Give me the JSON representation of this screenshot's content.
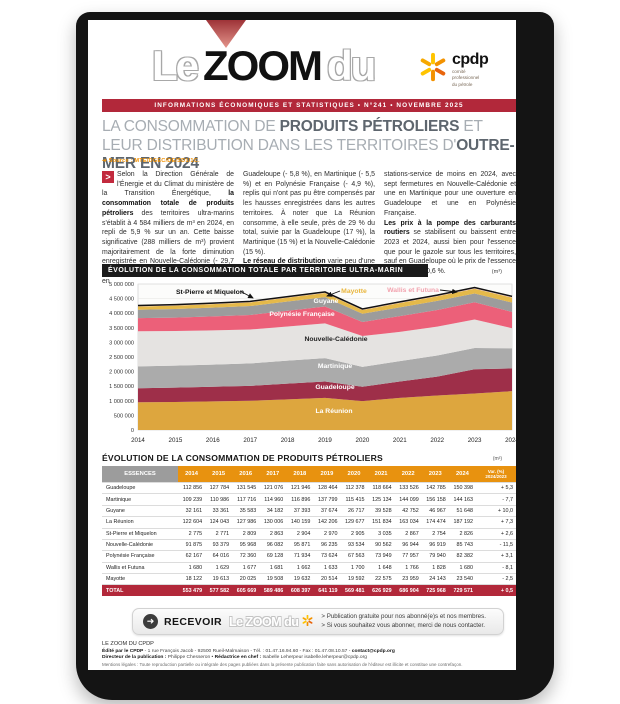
{
  "masthead": {
    "word1": "Le",
    "word2": "ZOOM",
    "word3": "du",
    "logo": {
      "name": "cpdp",
      "line1": "comité",
      "line2": "professionnel",
      "line3": "du pétrole"
    },
    "banner": "INFORMATIONS ÉCONOMIQUES ET STATISTIQUES • N°241 • NOVEMBRE 2025"
  },
  "title_segments": [
    {
      "t": "LA CONSOMMATION DE "
    },
    {
      "t": "PRODUITS PÉTROLIERS",
      "b": 1
    },
    {
      "t": " ET LEUR DISTRIBUTION DANS LES TERRITOIRES D'"
    },
    {
      "t": "OUTRE-MER EN 2024",
      "b": 1
    }
  ],
  "source": "➔ Source : MTE/DGEC/DE/SD1/1C.",
  "body": {
    "col1": [
      [
        {
          "t": "Selon la Direction Générale de l'Énergie et du Climat du ministère de la Transition Énergétique, "
        },
        {
          "t": "la consommation totale de produits pétroliers",
          "b": 1
        },
        {
          "t": " des territoires ultra-marins s'établit à 4 584 milliers de m³ en 2024, en repli de 5,9 % sur un an. Cette baisse significative (288 milliers de m³) provient majoritairement de la forte diminution enregistrée en Nouvelle-Calédonie (- 29,7 %) à laquelle viennent s'ajouter des reculs en"
        }
      ]
    ],
    "col2": [
      [
        {
          "t": "Guadeloupe (- 5,8 %), en Martinique (- 5,5 %) et en Polynésie Française (- 4,9 %), replis qui n'ont pas pu être compensés par les hausses enregistrées dans les autres territoires. À noter que La Réunion consomme, à elle seule, près de 29 % du total, suivie par la Guadeloupe (17 %), la Martinique (15 %) et la Nouvelle-Calédonie (15 %)."
        }
      ],
      [
        {
          "t": "Le réseau de distribution",
          "b": 1
        },
        {
          "t": " varie peu d'une année sur l'autre mais compte toutefois six"
        }
      ]
    ],
    "col3": [
      [
        {
          "t": "stations-service de moins en 2024, avec sept fermetures en Nouvelle-Calédonie et une en Martinique pour une ouverture en Guadeloupe et une en Polynésie Française."
        }
      ],
      [
        {
          "t": "Les prix à la pompe des carburants routiers",
          "b": 1
        },
        {
          "t": " se stabilisent ou baissent entre 2023 et 2024, aussi bien pour l'essence que pour le gazole sur tous les territoires, sauf en Guadeloupe où le prix de l'essence augmente de 0,6 %."
        }
      ]
    ]
  },
  "chart": {
    "header": "ÉVOLUTION DE LA CONSOMMATION TOTALE PAR TERRITOIRE ULTRA-MARIN",
    "unit": "(m³)"
  },
  "chart_data": {
    "type": "area",
    "stacked": true,
    "title": "ÉVOLUTION DE LA CONSOMMATION TOTALE PAR TERRITOIRE ULTRA-MARIN",
    "unit": "m³",
    "x": [
      2014,
      2015,
      2016,
      2017,
      2018,
      2019,
      2020,
      2021,
      2022,
      2023,
      2024
    ],
    "ylim": [
      0,
      5000000
    ],
    "ytick_step": 500000,
    "grid": true,
    "series": [
      {
        "name": "La Réunion",
        "color": "#DDA63E",
        "label_color": "#ffffff",
        "values": [
          950000,
          960000,
          980000,
          1000000,
          1050000,
          1100000,
          990000,
          1100000,
          1180000,
          1250000,
          1330000
        ]
      },
      {
        "name": "Guadeloupe",
        "color": "#9E2F49",
        "label_color": "#ffffff",
        "values": [
          480000,
          490000,
          500000,
          510000,
          540000,
          560000,
          490000,
          560000,
          650000,
          830000,
          780000
        ]
      },
      {
        "name": "Martinique",
        "color": "#ABABAB",
        "label_color": "#ffffff",
        "values": [
          750000,
          755000,
          760000,
          770000,
          785000,
          800000,
          680000,
          700000,
          720000,
          730000,
          690000
        ]
      },
      {
        "name": "Nouvelle-Calédonie",
        "color": "#E5E3E1",
        "label_color": "#222222",
        "values": [
          1200000,
          1185000,
          1170000,
          1160000,
          1170000,
          1190000,
          1060000,
          1000000,
          990000,
          975000,
          685000
        ]
      },
      {
        "name": "Polynésie Française",
        "color": "#EC6079",
        "label_color": "#ffffff",
        "values": [
          450000,
          460000,
          480000,
          500000,
          540000,
          580000,
          480000,
          540000,
          570000,
          590000,
          560000
        ]
      },
      {
        "name": "Guyane",
        "color": "#9C9C9C",
        "label_color": "#ffffff",
        "values": [
          290000,
          295000,
          300000,
          305000,
          315000,
          320000,
          280000,
          300000,
          310000,
          300000,
          320000
        ]
      },
      {
        "name": "Mayotte",
        "color": "#E5B94A",
        "label_color": "#E9B63D",
        "values": [
          110000,
          115000,
          120000,
          125000,
          132000,
          140000,
          130000,
          150000,
          160000,
          162000,
          170000
        ]
      },
      {
        "name": "Wallis et Futuna",
        "color": "#F2C9CF",
        "label_color": "#F2A3AF",
        "values": [
          20000,
          20000,
          20000,
          21000,
          21000,
          21000,
          20000,
          21000,
          22000,
          25000,
          25000
        ]
      },
      {
        "name": "St-Pierre et Miquelon",
        "color": "#1A1A1A",
        "label_color": "#111111",
        "values": [
          15000,
          15000,
          15000,
          16000,
          16000,
          17000,
          16000,
          17000,
          17000,
          19000,
          19000
        ]
      }
    ]
  },
  "table": {
    "title": "ÉVOLUTION DE LA CONSOMMATION DE PRODUITS PÉTROLIERS",
    "unit": "(m³)",
    "header_territory": "ESSENCES",
    "years": [
      "2014",
      "2015",
      "2016",
      "2017",
      "2018",
      "2019",
      "2020",
      "2021",
      "2022",
      "2023",
      "2024"
    ],
    "var_header_line1": "Var. (%)",
    "var_header_line2": "2024/2023",
    "rows": [
      {
        "name": "Guadeloupe",
        "values": [
          "112 856",
          "127 784",
          "131 545",
          "121 076",
          "121 946",
          "128 464",
          "112 378",
          "118 664",
          "133 526",
          "142 785",
          "150 398"
        ],
        "var": "+ 5,3"
      },
      {
        "name": "Martinique",
        "values": [
          "109 239",
          "110 986",
          "117 716",
          "114 960",
          "116 896",
          "137 799",
          "115 415",
          "125 134",
          "144 099",
          "156 158",
          "144 163"
        ],
        "var": "- 7,7"
      },
      {
        "name": "Guyane",
        "values": [
          "32 161",
          "33 361",
          "35 583",
          "34 182",
          "37 393",
          "37 674",
          "26 717",
          "39 528",
          "42 752",
          "46 967",
          "51 648"
        ],
        "var": "+ 10,0"
      },
      {
        "name": "La Réunion",
        "values": [
          "122 604",
          "124 043",
          "127 986",
          "130 006",
          "140 159",
          "142 206",
          "129 677",
          "151 834",
          "163 034",
          "174 474",
          "187 192"
        ],
        "var": "+ 7,3"
      },
      {
        "name": "St-Pierre et Miquelon",
        "values": [
          "2 775",
          "2 771",
          "2 809",
          "2 863",
          "2 904",
          "2 970",
          "2 905",
          "3 035",
          "2 867",
          "2 754",
          "2 826"
        ],
        "var": "+ 2,6"
      },
      {
        "name": "Nouvelle-Calédonie",
        "values": [
          "91 875",
          "93 379",
          "95 968",
          "96 082",
          "95 871",
          "96 235",
          "93 534",
          "90 562",
          "96 944",
          "96 919",
          "85 743"
        ],
        "var": "- 11,5"
      },
      {
        "name": "Polynésie Française",
        "values": [
          "62 167",
          "64 016",
          "72 360",
          "69 128",
          "71 934",
          "73 624",
          "67 563",
          "73 949",
          "77 957",
          "79 940",
          "82 382"
        ],
        "var": "+ 3,1"
      },
      {
        "name": "Wallis et Futuna",
        "values": [
          "1 680",
          "1 629",
          "1 677",
          "1 681",
          "1 662",
          "1 633",
          "1 700",
          "1 648",
          "1 766",
          "1 828",
          "1 680"
        ],
        "var": "- 8,1"
      },
      {
        "name": "Mayotte",
        "values": [
          "18 122",
          "19 613",
          "20 025",
          "19 508",
          "19 632",
          "20 514",
          "19 592",
          "22 575",
          "23 959",
          "24 143",
          "23 540"
        ],
        "var": "- 2,5"
      }
    ],
    "total": {
      "name": "TOTAL",
      "values": [
        "553 479",
        "577 582",
        "605 669",
        "589 486",
        "608 397",
        "641 119",
        "569 481",
        "626 929",
        "686 904",
        "725 968",
        "729 571"
      ],
      "var": "+ 0,5"
    }
  },
  "receive": {
    "label": "RECEVOIR",
    "brand": "Le ZOOM du",
    "arrow": "➜",
    "line1": "> Publication gratuite pour nos abonné(e)s et nos membres.",
    "line2": "> Si vous souhaitez vous abonner, merci de nous contacter."
  },
  "footer": {
    "l1": "LE ZOOM DU CPDP",
    "l2": [
      [
        {
          "t": "Édité par le CPDP",
          "b": 1
        },
        {
          "t": " - 1 rue François Jacob - 92500 Rueil-Malmaison - Tél. : 01.47.16.94.60 - Fax : 01.47.08.10.57 - "
        },
        {
          "t": "contact@cpdp.org",
          "b": 1
        }
      ]
    ],
    "l3": [
      [
        {
          "t": "Directeur de la publication : ",
          "b": 1
        },
        {
          "t": "Philippe Chesseron • "
        },
        {
          "t": "Rédactrice en chef : ",
          "b": 1
        },
        {
          "t": "Isabelle Leherpeur isabelle.leherpeur@cpdp.org"
        }
      ]
    ],
    "l4": "Mentions légales : Toute reproduction partielle ou intégrale des pages publiées dans la présente publication faite sans autorisation de l'éditeur est illicite et constitue une contrefaçon."
  }
}
